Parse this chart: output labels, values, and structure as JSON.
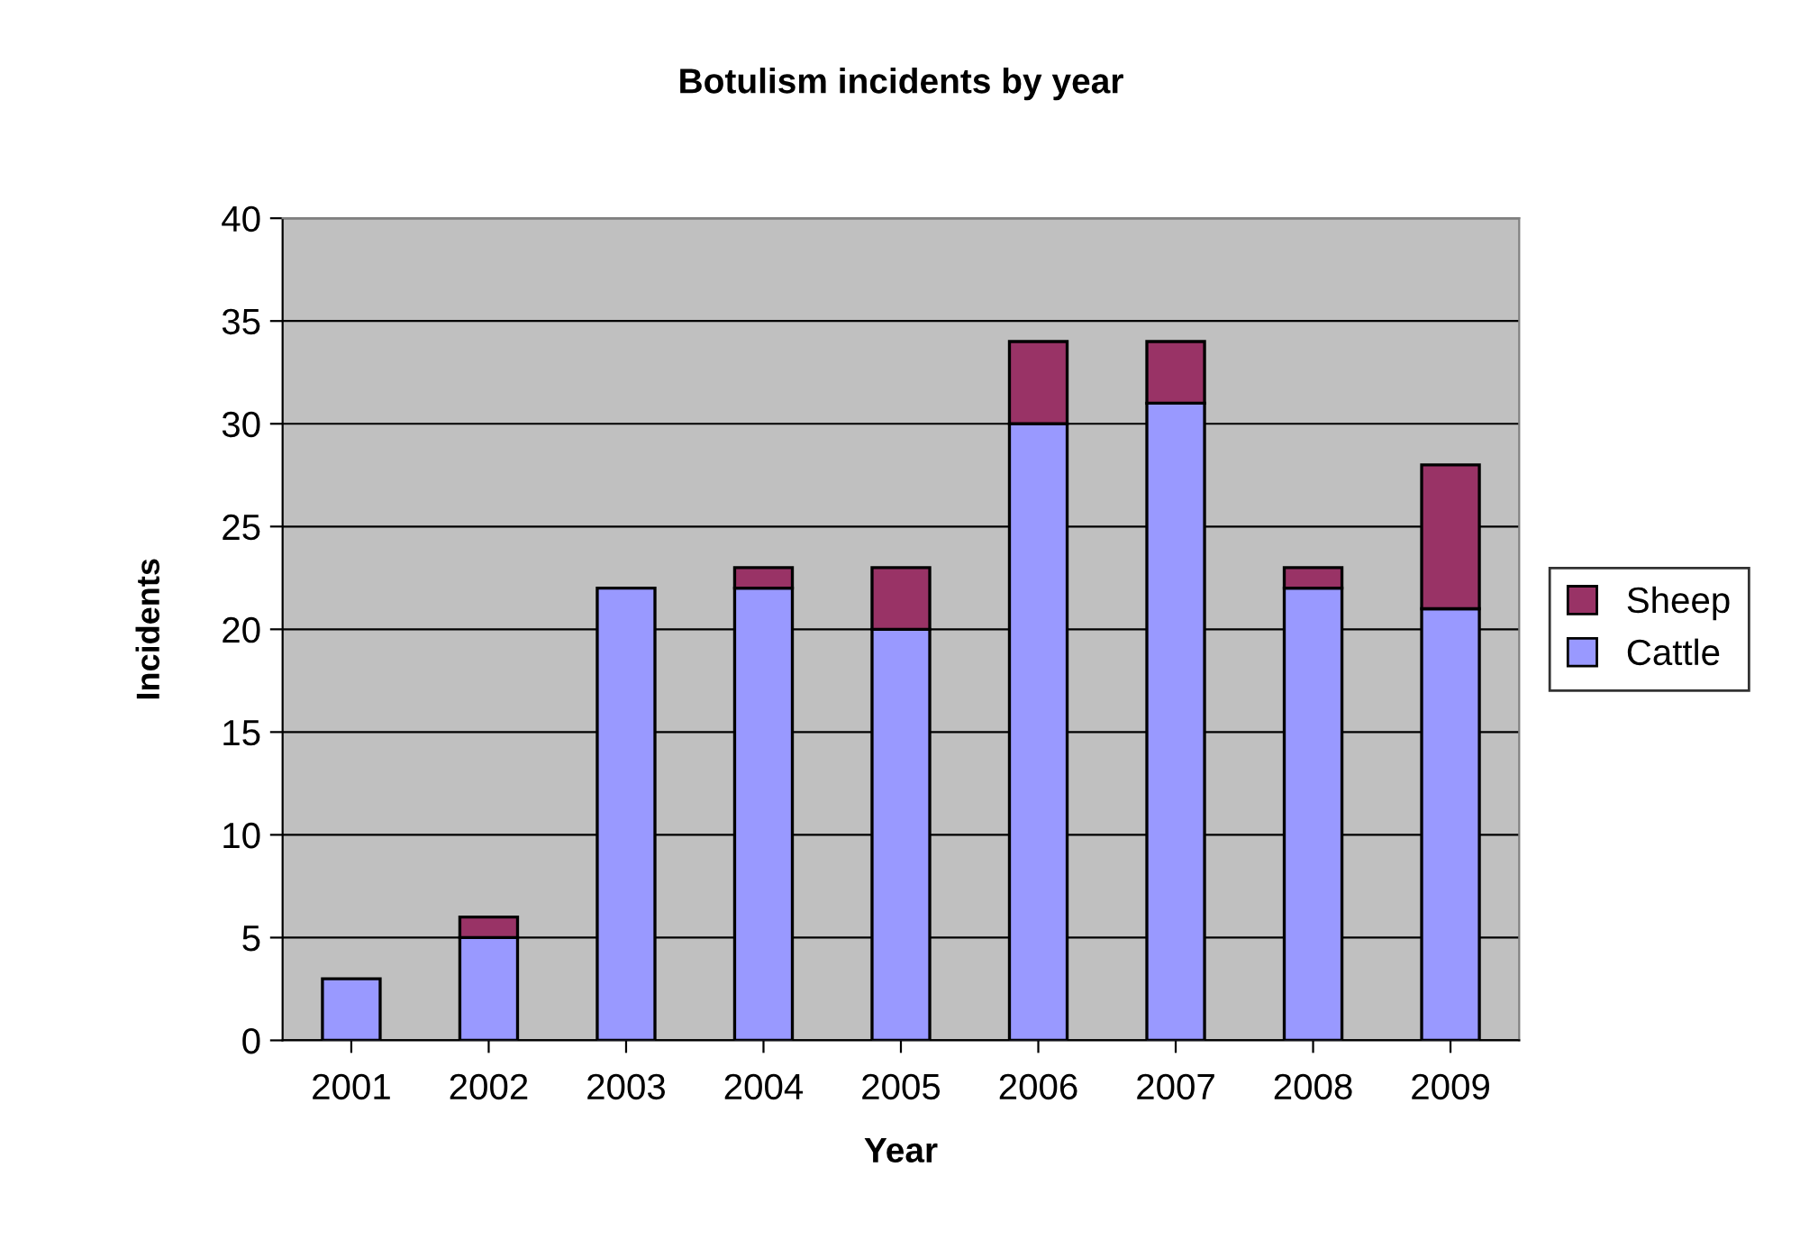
{
  "chart_data": {
    "type": "bar",
    "title": "Botulism incidents by year",
    "xlabel": "Year",
    "ylabel": "Incidents",
    "categories": [
      "2001",
      "2002",
      "2003",
      "2004",
      "2005",
      "2006",
      "2007",
      "2008",
      "2009"
    ],
    "stacked": true,
    "series": [
      {
        "name": "Cattle",
        "color": "#9999ff",
        "values": [
          3,
          5,
          22,
          22,
          20,
          30,
          31,
          22,
          21
        ]
      },
      {
        "name": "Sheep",
        "color": "#993366",
        "values": [
          null,
          1,
          null,
          1,
          3,
          4,
          3,
          1,
          7
        ]
      }
    ],
    "ylim": [
      0,
      40
    ],
    "yticks": [
      0,
      5,
      10,
      15,
      20,
      25,
      30,
      35,
      40
    ],
    "grid": "y",
    "legend": "right"
  }
}
